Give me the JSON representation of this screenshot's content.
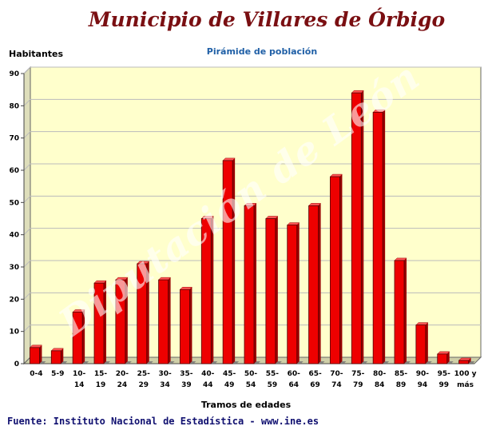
{
  "header": {
    "title": "Municipio de Villares de Órbigo",
    "subtitle": "Pirámide de población"
  },
  "footer": {
    "source": "Fuente: Instituto Nacional de Estadística - www.ine.es"
  },
  "watermark": "Diputación de León",
  "colors": {
    "bar": "#ee0000",
    "bar_dark": "#990000",
    "plot_bg": "#ffffcc",
    "shadow": "#777777",
    "grid": "#bbbbbb"
  },
  "chart_data": {
    "type": "bar",
    "title": "Pirámide de población",
    "xlabel": "Tramos de edades",
    "ylabel": "Habitantes",
    "ylim": [
      0,
      90
    ],
    "yticks": [
      "0",
      "10",
      "20",
      "30",
      "40",
      "50",
      "60",
      "70",
      "80",
      "90"
    ],
    "grid": true,
    "categories": [
      [
        "0-4"
      ],
      [
        "5-9"
      ],
      [
        "10-",
        "14"
      ],
      [
        "15-",
        "19"
      ],
      [
        "20-",
        "24"
      ],
      [
        "25-",
        "29"
      ],
      [
        "30-",
        "34"
      ],
      [
        "35-",
        "39"
      ],
      [
        "40-",
        "44"
      ],
      [
        "45-",
        "49"
      ],
      [
        "50-",
        "54"
      ],
      [
        "55-",
        "59"
      ],
      [
        "60-",
        "64"
      ],
      [
        "65-",
        "69"
      ],
      [
        "70-",
        "74"
      ],
      [
        "75-",
        "79"
      ],
      [
        "80-",
        "84"
      ],
      [
        "85-",
        "89"
      ],
      [
        "90-",
        "94"
      ],
      [
        "95-",
        "99"
      ],
      [
        "100 y",
        "más"
      ]
    ],
    "values": [
      5,
      4,
      16,
      25,
      26,
      31,
      26,
      23,
      45,
      63,
      49,
      45,
      43,
      49,
      58,
      84,
      78,
      32,
      12,
      3,
      1
    ]
  }
}
